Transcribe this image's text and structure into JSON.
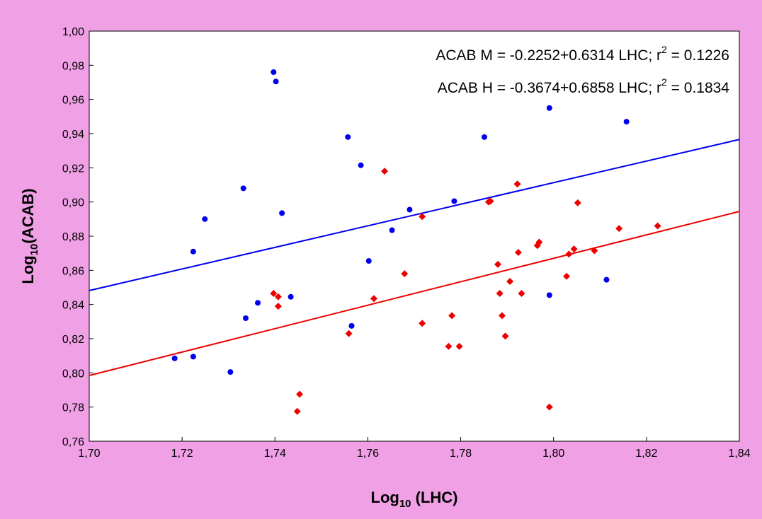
{
  "chart_data": {
    "type": "scatter",
    "title": "",
    "xlabel": {
      "prefix": "Log",
      "sub": "10",
      "suffix": " (LHC)"
    },
    "ylabel": {
      "prefix": "Log",
      "sub": "10",
      "suffix": "(ACAB)"
    },
    "xlim": [
      1.7,
      1.84
    ],
    "ylim": [
      0.76,
      1.0
    ],
    "x_ticks": [
      "1,70",
      "1,72",
      "1,74",
      "1,76",
      "1,78",
      "1,80",
      "1,82",
      "1,84"
    ],
    "y_ticks": [
      "0,76",
      "0,78",
      "0,80",
      "0,82",
      "0,84",
      "0,86",
      "0,88",
      "0,90",
      "0,92",
      "0,94",
      "0,96",
      "0,98",
      "1,00"
    ],
    "grid": false,
    "colors": {
      "background": "#f0a0e4",
      "plot": "#ffffff",
      "series_m": "#0000ee",
      "series_h": "#ee0000"
    },
    "annotations": [
      {
        "pre": "ACAB M = -0.2252+0.6314 LHC; r",
        "sup": "2",
        "post": " = 0.1226"
      },
      {
        "pre": "ACAB H = -0.3674+0.6858 LHC; r",
        "sup": "2",
        "post": " = 0.1834"
      }
    ],
    "series": [
      {
        "marker": "circle",
        "color": "#0000ee",
        "fit": {
          "intercept": -0.2252,
          "slope": 0.6314
        },
        "points": [
          [
            1.7184,
            0.8085
          ],
          [
            1.7224,
            0.871
          ],
          [
            1.7224,
            0.8095
          ],
          [
            1.7249,
            0.89
          ],
          [
            1.7304,
            0.8005
          ],
          [
            1.7332,
            0.908
          ],
          [
            1.7337,
            0.832
          ],
          [
            1.7363,
            0.841
          ],
          [
            1.7397,
            0.976
          ],
          [
            1.7402,
            0.9705
          ],
          [
            1.7415,
            0.8935
          ],
          [
            1.7434,
            0.8445
          ],
          [
            1.7557,
            0.938
          ],
          [
            1.7565,
            0.8275
          ],
          [
            1.7585,
            0.9215
          ],
          [
            1.7602,
            0.8655
          ],
          [
            1.7652,
            0.8835
          ],
          [
            1.769,
            0.8955
          ],
          [
            1.7786,
            0.9005
          ],
          [
            1.7851,
            0.938
          ],
          [
            1.7991,
            0.955
          ],
          [
            1.7991,
            0.8455
          ],
          [
            1.8114,
            0.8545
          ],
          [
            1.8157,
            0.947
          ]
        ]
      },
      {
        "marker": "diamond",
        "color": "#ee0000",
        "fit": {
          "intercept": -0.3674,
          "slope": 0.6858
        },
        "points": [
          [
            1.7397,
            0.8465
          ],
          [
            1.7407,
            0.8445
          ],
          [
            1.7407,
            0.839
          ],
          [
            1.7448,
            0.7775
          ],
          [
            1.7453,
            0.7875
          ],
          [
            1.7559,
            0.823
          ],
          [
            1.7613,
            0.8435
          ],
          [
            1.7636,
            0.918
          ],
          [
            1.7679,
            0.858
          ],
          [
            1.7717,
            0.8915
          ],
          [
            1.7717,
            0.829
          ],
          [
            1.7774,
            0.8155
          ],
          [
            1.7781,
            0.8335
          ],
          [
            1.7797,
            0.8155
          ],
          [
            1.786,
            0.9
          ],
          [
            1.7864,
            0.9005
          ],
          [
            1.788,
            0.8635
          ],
          [
            1.7884,
            0.8465
          ],
          [
            1.7889,
            0.8335
          ],
          [
            1.7896,
            0.8215
          ],
          [
            1.7906,
            0.8535
          ],
          [
            1.7922,
            0.9105
          ],
          [
            1.7924,
            0.8705
          ],
          [
            1.7931,
            0.8465
          ],
          [
            1.7965,
            0.8745
          ],
          [
            1.7969,
            0.8765
          ],
          [
            1.7991,
            0.78
          ],
          [
            1.8028,
            0.8565
          ],
          [
            1.8033,
            0.8695
          ],
          [
            1.8044,
            0.8725
          ],
          [
            1.8052,
            0.8995
          ],
          [
            1.8088,
            0.8715
          ],
          [
            1.8141,
            0.8845
          ],
          [
            1.8224,
            0.886
          ]
        ]
      }
    ]
  }
}
